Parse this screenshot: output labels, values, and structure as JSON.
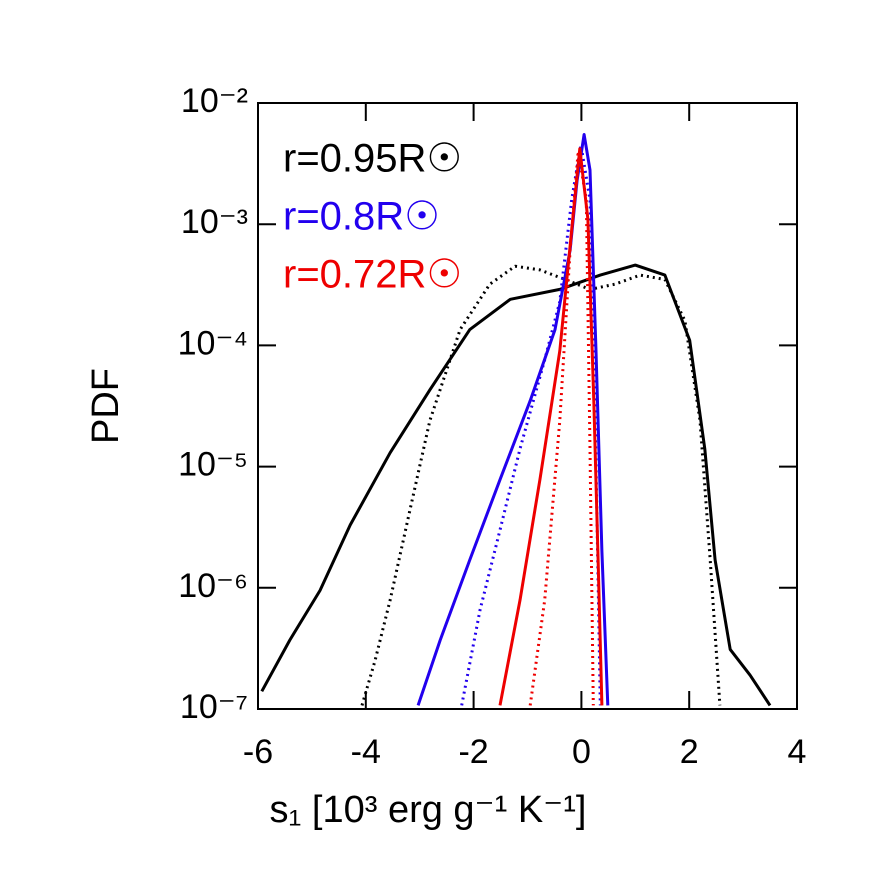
{
  "chart_data": {
    "type": "line",
    "x_label": "s₁ [10³ erg g⁻¹ K⁻¹]",
    "y_label": "PDF",
    "log_y": true,
    "legend": "upper left",
    "xlim": [
      -6,
      4
    ],
    "xticks": [
      -6,
      -4,
      -2,
      0,
      2,
      4
    ],
    "ylim": [
      1e-07,
      0.01
    ],
    "yticks": [
      {
        "value": 0.01,
        "label": "10⁻²"
      },
      {
        "value": 0.001,
        "label": "10⁻³"
      },
      {
        "value": 0.0001,
        "label": "10⁻⁴"
      },
      {
        "value": 1e-05,
        "label": "10⁻⁵"
      },
      {
        "value": 1e-06,
        "label": "10⁻⁶"
      },
      {
        "value": 1e-07,
        "label": "10⁻⁷"
      }
    ],
    "series": [
      {
        "name": "r=0.95R☉",
        "color": "#000000",
        "linestyle": "solid",
        "x": [
          -5.93,
          -5.41,
          -4.85,
          -4.29,
          -3.55,
          -2.81,
          -2.07,
          -1.32,
          -0.4,
          0.35,
          1.0,
          1.55,
          2.01,
          2.29,
          2.48,
          2.76,
          3.13,
          3.5
        ],
        "values": [
          1.4e-07,
          3.7e-07,
          9.5e-07,
          3.3e-06,
          1.3e-05,
          4.3e-05,
          0.000135,
          0.00024,
          0.00029,
          0.00038,
          0.00046,
          0.00038,
          0.00011,
          1.4e-05,
          1.7e-06,
          3.1e-07,
          1.9e-07,
          1.07e-07
        ]
      },
      {
        "color": "#000000",
        "linestyle": "dotted",
        "x": [
          -4.07,
          -3.83,
          -3.55,
          -3.18,
          -2.81,
          -2.25,
          -1.7,
          -1.23,
          -0.77,
          -0.3,
          0.16,
          0.62,
          1.09,
          1.55,
          1.92,
          2.2,
          2.39,
          2.57
        ],
        "values": [
          1.07e-07,
          2.5e-07,
          7.9e-07,
          4.4e-06,
          2.4e-05,
          0.000135,
          0.00032,
          0.00045,
          0.00042,
          0.00035,
          0.00029,
          0.00032,
          0.00038,
          0.00035,
          0.00016,
          2.4e-05,
          1.7e-06,
          1.07e-07
        ]
      },
      {
        "name": "r=0.8R☉",
        "color": "#2200ee",
        "linestyle": "solid",
        "x": [
          -3.03,
          -2.62,
          -2.07,
          -1.51,
          -0.95,
          -0.49,
          -0.21,
          -0.08,
          0.05,
          0.16,
          0.27,
          0.38,
          0.49
        ],
        "values": [
          1.07e-07,
          3.7e-07,
          1.7e-06,
          7.8e-06,
          3.5e-05,
          0.000135,
          0.00061,
          0.0023,
          0.0055,
          0.0028,
          9e-05,
          2e-06,
          1.07e-07
        ]
      },
      {
        "color": "#2200ee",
        "linestyle": "dotted",
        "x": [
          -2.22,
          -1.88,
          -1.51,
          -1.14,
          -0.68,
          -0.4,
          -0.18,
          -0.01,
          0.16,
          0.25,
          0.35
        ],
        "values": [
          1.07e-07,
          6.6e-07,
          3e-06,
          1.4e-05,
          7.6e-05,
          0.00023,
          0.0016,
          0.0045,
          0.0016,
          3.5e-05,
          1.07e-07
        ]
      },
      {
        "name": "r=0.72R☉",
        "color": "#ee0000",
        "linestyle": "solid",
        "x": [
          -1.51,
          -1.14,
          -0.77,
          -0.4,
          -0.18,
          -0.03,
          0.12,
          0.23,
          0.31,
          0.38
        ],
        "values": [
          1.07e-07,
          7.9e-07,
          7.8e-06,
          9e-05,
          0.0009,
          0.0042,
          0.0011,
          3.5e-05,
          1.7e-06,
          1.07e-07
        ]
      },
      {
        "color": "#ee0000",
        "linestyle": "dotted",
        "x": [
          -0.95,
          -0.68,
          -0.4,
          -0.21,
          -0.06,
          0.09,
          0.16,
          0.22
        ],
        "values": [
          1.07e-07,
          7.9e-07,
          2.4e-05,
          0.00061,
          0.004,
          0.0016,
          1.4e-05,
          1.07e-07
        ]
      }
    ]
  }
}
